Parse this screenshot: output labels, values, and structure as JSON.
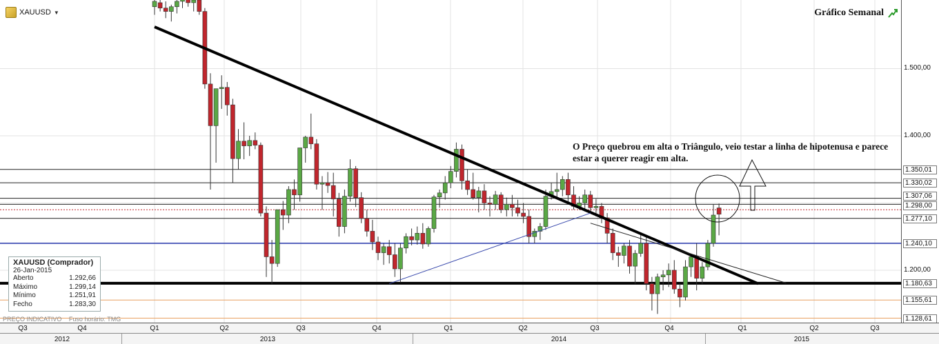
{
  "header": {
    "symbol": "XAUUSD",
    "chart_title": "Gráfico Semanal",
    "icons": {
      "symbol": "gold-bar-icon",
      "dropdown": "chevron-down-icon",
      "title": "trend-up-icon"
    }
  },
  "annotation": {
    "text": "O Preço quebrou em alta o Triângulo, veio testar a linha de hipotenusa e parece estar a querer reagir em alta."
  },
  "info_box": {
    "title": "XAUUSD (Comprador)",
    "date": "26-Jan-2015",
    "rows": [
      {
        "label": "Aberto",
        "value": "1.292,66"
      },
      {
        "label": "Máximo",
        "value": "1.299,14"
      },
      {
        "label": "Mínimo",
        "value": "1.251,91"
      },
      {
        "label": "Fecho",
        "value": "1.283,30"
      }
    ]
  },
  "footer": {
    "indicative": "PREÇO INDICATIVO",
    "timezone": "Fuso horário: TMG"
  },
  "colors": {
    "up": "#5aa845",
    "down": "#c0262d",
    "trend_line": "#000000",
    "support_line": "#2233aa",
    "fib_line": "#e8a060"
  },
  "chart_data": {
    "type": "candlestick",
    "title": "Gráfico Semanal",
    "ylim": [
      1122,
      1602
    ],
    "price_axis_labels": [
      "1.500,00",
      "1.400,00",
      "1.200,00"
    ],
    "price_tags": [
      "1.350,01",
      "1.330,02",
      "1.307,06",
      "1.298,00",
      "1.277,10",
      "1.240,10",
      "1.180,63",
      "1.155,61",
      "1.128,61"
    ],
    "horizontal_levels": [
      {
        "value": 1350.01,
        "style": "thin"
      },
      {
        "value": 1330.02,
        "style": "thin"
      },
      {
        "value": 1307.06,
        "style": "thin"
      },
      {
        "value": 1298.0,
        "style": "thin"
      },
      {
        "value": 1290.0,
        "style": "dotted-red"
      },
      {
        "value": 1277.1,
        "style": "thin"
      },
      {
        "value": 1240.1,
        "style": "blue"
      },
      {
        "value": 1180.63,
        "style": "thick"
      },
      {
        "value": 1155.61,
        "style": "orange"
      },
      {
        "value": 1128.61,
        "style": "orange"
      }
    ],
    "quarters": [
      "Q3",
      "Q4",
      "Q1",
      "Q2",
      "Q3",
      "Q4",
      "Q1",
      "Q2",
      "Q3",
      "Q4",
      "Q1",
      "Q2",
      "Q3"
    ],
    "years": [
      "2012",
      "2013",
      "2014",
      "2015"
    ],
    "candles_ohlc": [
      [
        1592,
        1605,
        1580,
        1600
      ],
      [
        1598,
        1612,
        1585,
        1590
      ],
      [
        1590,
        1600,
        1575,
        1585
      ],
      [
        1585,
        1595,
        1570,
        1592
      ],
      [
        1592,
        1610,
        1582,
        1600
      ],
      [
        1600,
        1615,
        1590,
        1605
      ],
      [
        1605,
        1618,
        1592,
        1598
      ],
      [
        1598,
        1612,
        1585,
        1602
      ],
      [
        1602,
        1615,
        1580,
        1585
      ],
      [
        1585,
        1590,
        1470,
        1477
      ],
      [
        1477,
        1493,
        1320,
        1415
      ],
      [
        1415,
        1453,
        1360,
        1470
      ],
      [
        1470,
        1490,
        1440,
        1472
      ],
      [
        1472,
        1480,
        1430,
        1446
      ],
      [
        1446,
        1455,
        1330,
        1366
      ],
      [
        1366,
        1410,
        1350,
        1392
      ],
      [
        1392,
        1420,
        1365,
        1385
      ],
      [
        1385,
        1400,
        1370,
        1393
      ],
      [
        1393,
        1405,
        1380,
        1386
      ],
      [
        1386,
        1390,
        1280,
        1285
      ],
      [
        1285,
        1295,
        1190,
        1220
      ],
      [
        1220,
        1245,
        1180,
        1210
      ],
      [
        1210,
        1290,
        1205,
        1290
      ],
      [
        1290,
        1303,
        1260,
        1282
      ],
      [
        1282,
        1325,
        1270,
        1320
      ],
      [
        1320,
        1335,
        1290,
        1312
      ],
      [
        1312,
        1368,
        1302,
        1382
      ],
      [
        1382,
        1400,
        1360,
        1398
      ],
      [
        1398,
        1433,
        1380,
        1388
      ],
      [
        1388,
        1395,
        1320,
        1328
      ],
      [
        1328,
        1340,
        1290,
        1330
      ],
      [
        1330,
        1346,
        1315,
        1326
      ],
      [
        1326,
        1345,
        1280,
        1306
      ],
      [
        1306,
        1315,
        1250,
        1265
      ],
      [
        1265,
        1320,
        1255,
        1310
      ],
      [
        1310,
        1365,
        1302,
        1351
      ],
      [
        1351,
        1355,
        1294,
        1308
      ],
      [
        1308,
        1316,
        1270,
        1277
      ],
      [
        1277,
        1290,
        1250,
        1258
      ],
      [
        1258,
        1275,
        1230,
        1242
      ],
      [
        1242,
        1250,
        1215,
        1226
      ],
      [
        1226,
        1240,
        1208,
        1235
      ],
      [
        1235,
        1245,
        1210,
        1223
      ],
      [
        1223,
        1240,
        1190,
        1202
      ],
      [
        1202,
        1240,
        1182,
        1233
      ],
      [
        1233,
        1255,
        1225,
        1250
      ],
      [
        1250,
        1262,
        1237,
        1245
      ],
      [
        1245,
        1265,
        1238,
        1255
      ],
      [
        1255,
        1270,
        1232,
        1239
      ],
      [
        1239,
        1265,
        1235,
        1262
      ],
      [
        1262,
        1312,
        1256,
        1309
      ],
      [
        1309,
        1320,
        1293,
        1315
      ],
      [
        1315,
        1340,
        1305,
        1330
      ],
      [
        1330,
        1355,
        1322,
        1347
      ],
      [
        1347,
        1390,
        1338,
        1380
      ],
      [
        1380,
        1387,
        1320,
        1333
      ],
      [
        1333,
        1350,
        1312,
        1320
      ],
      [
        1320,
        1345,
        1305,
        1308
      ],
      [
        1308,
        1324,
        1286,
        1318
      ],
      [
        1318,
        1328,
        1290,
        1300
      ],
      [
        1300,
        1310,
        1280,
        1298
      ],
      [
        1298,
        1318,
        1290,
        1312
      ],
      [
        1312,
        1316,
        1285,
        1290
      ],
      [
        1290,
        1308,
        1280,
        1298
      ],
      [
        1298,
        1312,
        1280,
        1293
      ],
      [
        1293,
        1305,
        1280,
        1285
      ],
      [
        1285,
        1300,
        1270,
        1280
      ],
      [
        1280,
        1290,
        1240,
        1250
      ],
      [
        1250,
        1262,
        1240,
        1258
      ],
      [
        1258,
        1270,
        1245,
        1265
      ],
      [
        1265,
        1320,
        1260,
        1310
      ],
      [
        1310,
        1330,
        1305,
        1317
      ],
      [
        1317,
        1345,
        1308,
        1320
      ],
      [
        1320,
        1340,
        1310,
        1335
      ],
      [
        1335,
        1345,
        1300,
        1312
      ],
      [
        1312,
        1325,
        1290,
        1295
      ],
      [
        1295,
        1310,
        1290,
        1300
      ],
      [
        1300,
        1320,
        1290,
        1312
      ],
      [
        1312,
        1318,
        1285,
        1293
      ],
      [
        1293,
        1306,
        1280,
        1295
      ],
      [
        1295,
        1300,
        1270,
        1278
      ],
      [
        1278,
        1285,
        1240,
        1255
      ],
      [
        1255,
        1262,
        1215,
        1226
      ],
      [
        1226,
        1235,
        1205,
        1222
      ],
      [
        1222,
        1240,
        1210,
        1236
      ],
      [
        1236,
        1245,
        1195,
        1206
      ],
      [
        1206,
        1230,
        1180,
        1225
      ],
      [
        1225,
        1255,
        1220,
        1240
      ],
      [
        1240,
        1250,
        1170,
        1180
      ],
      [
        1180,
        1190,
        1140,
        1165
      ],
      [
        1165,
        1195,
        1135,
        1190
      ],
      [
        1190,
        1200,
        1170,
        1193
      ],
      [
        1193,
        1210,
        1175,
        1200
      ],
      [
        1200,
        1215,
        1165,
        1172
      ],
      [
        1172,
        1180,
        1145,
        1160
      ],
      [
        1160,
        1215,
        1155,
        1205
      ],
      [
        1205,
        1225,
        1190,
        1220
      ],
      [
        1220,
        1240,
        1170,
        1188
      ],
      [
        1188,
        1212,
        1180,
        1205
      ],
      [
        1205,
        1245,
        1200,
        1240
      ],
      [
        1240,
        1298,
        1235,
        1282
      ],
      [
        1292.66,
        1299.14,
        1251.91,
        1283.3
      ]
    ],
    "trend_lines": [
      {
        "name": "main-downtrend",
        "from": [
          0,
          1562
        ],
        "to": [
          108,
          1180
        ]
      },
      {
        "name": "rising-support",
        "from": [
          42,
          1180
        ],
        "to": [
          78,
          1285
        ]
      },
      {
        "name": "lower-downtrend",
        "from": [
          78,
          1270
        ],
        "to": [
          113,
          1181
        ]
      }
    ]
  }
}
